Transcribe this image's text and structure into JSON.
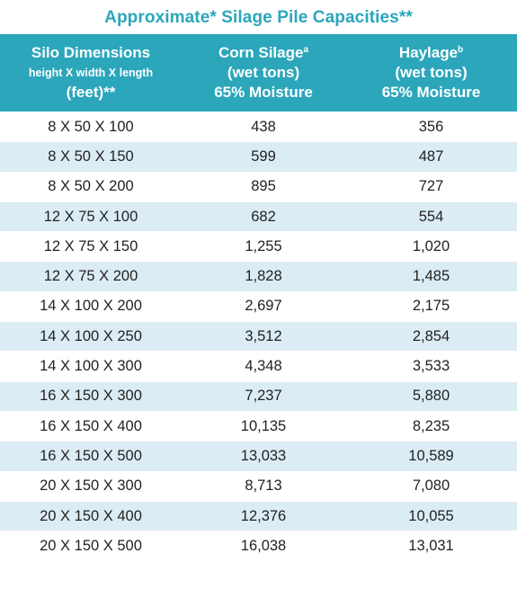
{
  "title": "Approximate* Silage Pile Capacities**",
  "header": {
    "col1": {
      "line1": "Silo Dimensions",
      "line2": "height X width X length",
      "line3": "(feet)**"
    },
    "col2": {
      "line1": "Corn Silage",
      "sup": "a",
      "line2": "(wet tons)",
      "line3": "65% Moisture"
    },
    "col3": {
      "line1": "Haylage",
      "sup": "b",
      "line2": "(wet tons)",
      "line3": "65% Moisture"
    }
  },
  "rows": [
    [
      "8 X 50 X 100",
      "438",
      "356"
    ],
    [
      "8 X 50 X 150",
      "599",
      "487"
    ],
    [
      "8 X 50 X 200",
      "895",
      "727"
    ],
    [
      "12 X 75 X 100",
      "682",
      "554"
    ],
    [
      "12 X 75 X 150",
      "1,255",
      "1,020"
    ],
    [
      "12 X 75 X 200",
      "1,828",
      "1,485"
    ],
    [
      "14 X 100 X 200",
      "2,697",
      "2,175"
    ],
    [
      "14 X 100 X 250",
      "3,512",
      "2,854"
    ],
    [
      "14 X 100 X 300",
      "4,348",
      "3,533"
    ],
    [
      "16 X 150 X 300",
      "7,237",
      "5,880"
    ],
    [
      "16 X 150 X 400",
      "10,135",
      "8,235"
    ],
    [
      "16 X 150 X 500",
      "13,033",
      "10,589"
    ],
    [
      "20 X 150 X 300",
      "8,713",
      "7,080"
    ],
    [
      "20 X 150 X 400",
      "12,376",
      "10,055"
    ],
    [
      "20 X 150 X 500",
      "16,038",
      "13,031"
    ]
  ],
  "colors": {
    "accent": "#2ba6bb",
    "row_stripe": "#dcecf4",
    "text": "#222222"
  }
}
